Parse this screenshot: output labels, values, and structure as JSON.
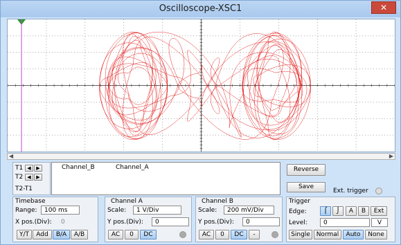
{
  "window": {
    "title": "Oscilloscope-XSC1",
    "close_label": "✕"
  },
  "cursors": {
    "t1_label": "T1",
    "t2_label": "T2",
    "t2t1_label": "T2-T1",
    "columns": [
      "Channel_B",
      "Channel_A"
    ]
  },
  "buttons": {
    "reverse": "Reverse",
    "save": "Save",
    "ext_trigger": "Ext. trigger"
  },
  "timebase": {
    "title": "Timebase",
    "scale_label": "Range:",
    "scale_value": "100 ms",
    "xpos_label": "X pos.(Div):",
    "xpos_value": "0",
    "modes": [
      "Y/T",
      "Add",
      "B/A",
      "A/B"
    ],
    "active_mode": "B/A"
  },
  "channel_a": {
    "title": "Channel A",
    "scale_label": "Scale:",
    "scale_value": "1 V/Div",
    "ypos_label": "Y pos.(Div):",
    "ypos_value": "0",
    "coupling": [
      "AC",
      "0",
      "DC"
    ],
    "active_coupling": "DC"
  },
  "channel_b": {
    "title": "Channel B",
    "scale_label": "Scale:",
    "scale_value": "200 mV/Div",
    "ypos_label": "Y pos.(Div):",
    "ypos_value": "0",
    "coupling": [
      "AC",
      "0",
      "DC",
      "-"
    ],
    "active_coupling": "DC"
  },
  "trigger": {
    "title": "Trigger",
    "edge_label": "Edge:",
    "edge_buttons": [
      "A",
      "B",
      "Ext"
    ],
    "level_label": "Level:",
    "level_value": "0",
    "level_unit": "V",
    "modes": [
      "Single",
      "Normal",
      "Auto",
      "None"
    ],
    "active_mode": "Auto"
  },
  "colors": {
    "trace": "#e00000",
    "grid": "#555555",
    "accent": "#5e8fc7"
  }
}
